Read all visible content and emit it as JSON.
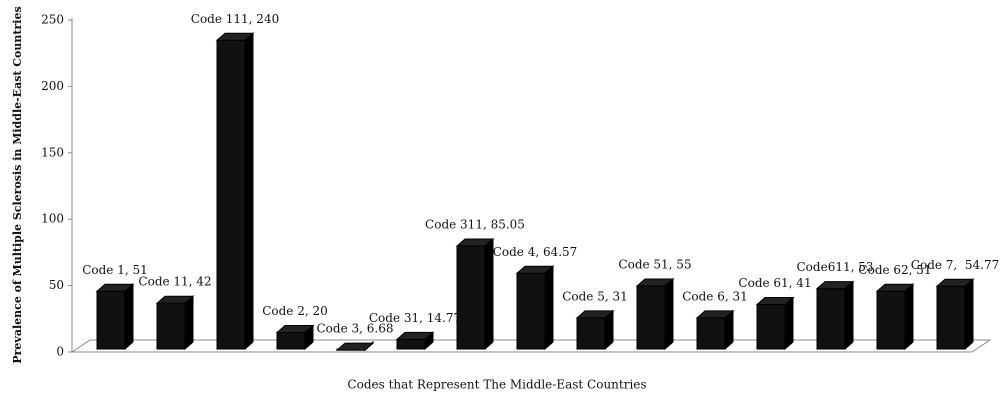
{
  "chart_data": {
    "type": "bar3d",
    "y_axis_label": "Prevalence of Multiple Sclerosis in Middle-East Countries",
    "x_axis_label": "Codes that Represent The Middle-East Countries",
    "values": [
      51,
      42,
      240,
      20,
      6.68,
      14.77,
      85.05,
      64.57,
      31,
      55,
      31,
      41,
      53,
      51,
      54.77
    ],
    "value_labels": [
      "Code 1, 51",
      "Code 11, 42",
      "Code 111, 240",
      "Code 2, 20",
      "Code 3, 6.68",
      "Code 31, 14.77",
      "Code 311, 85.05",
      "Code 4, 64.57",
      "Code 5, 31",
      "Code 51, 55",
      "Code 6, 31",
      "Code 61, 41",
      "Code611, 53",
      "Code 62, 51",
      "Code 7,  54.77"
    ],
    "color": "#111111",
    "ylim": [
      0,
      250
    ],
    "yticks": [
      0,
      50,
      100,
      150,
      200,
      250
    ]
  }
}
